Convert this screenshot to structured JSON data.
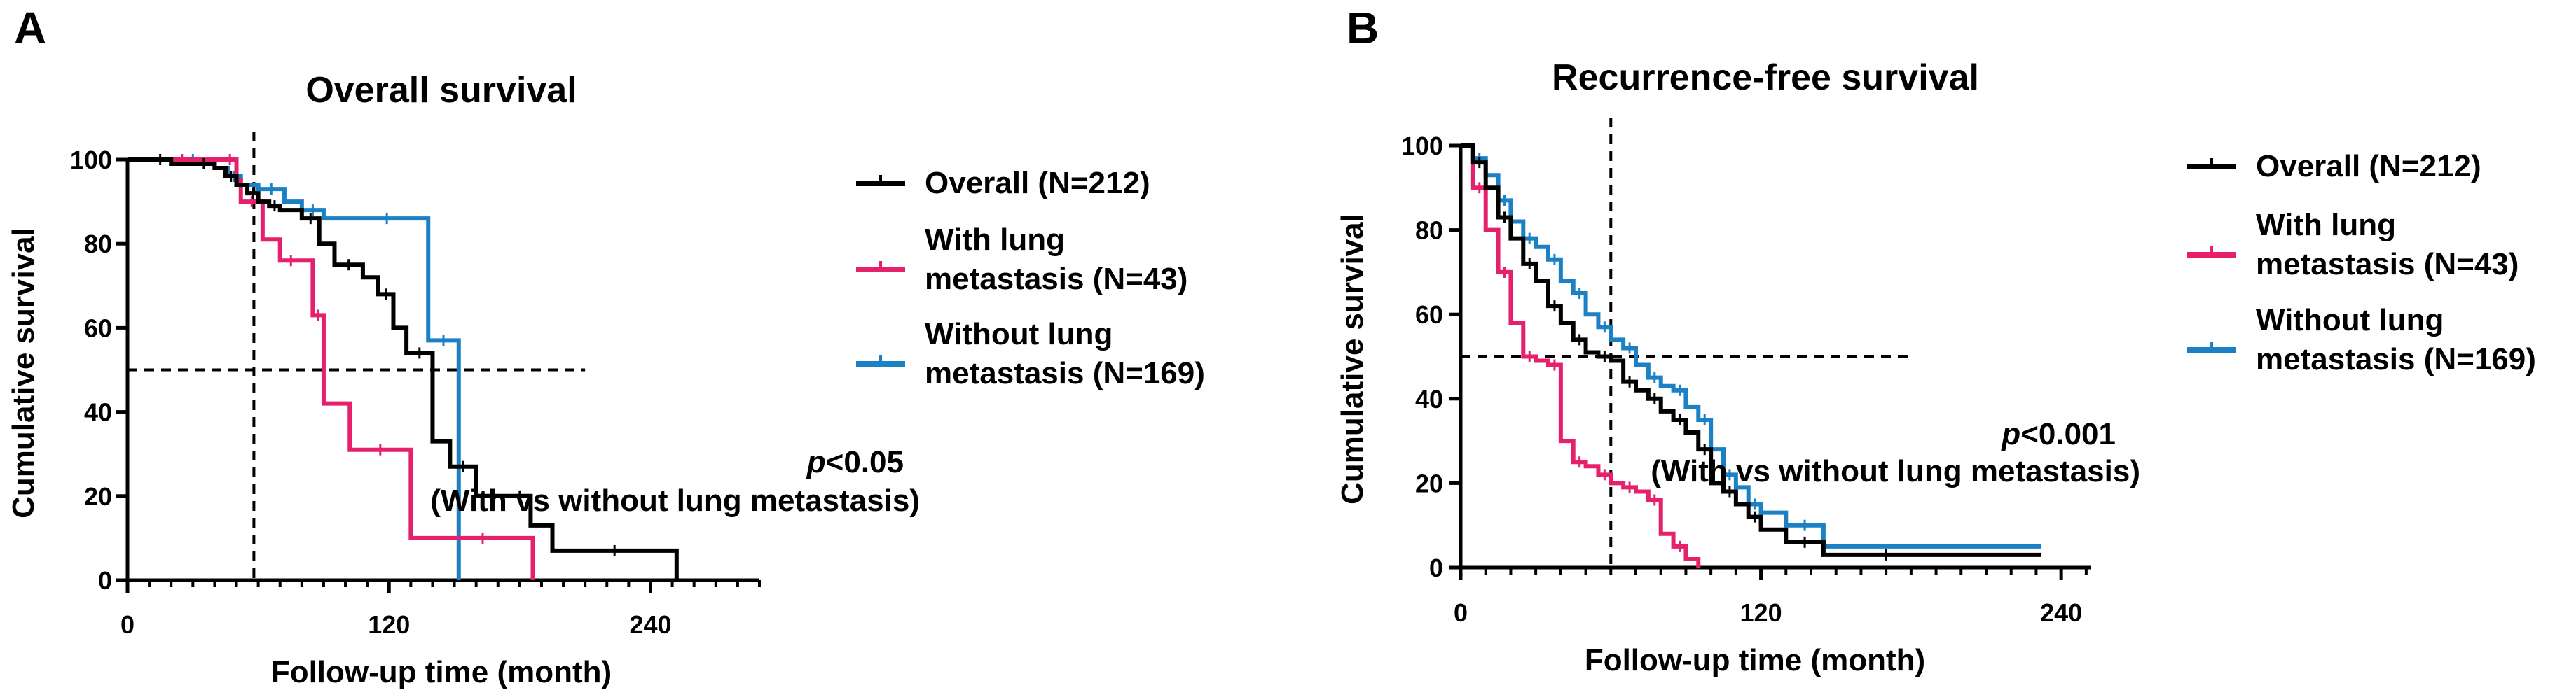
{
  "colors": {
    "overall": "#000000",
    "with": "#e5216e",
    "without": "#1b80c4"
  },
  "chart_data": [
    {
      "type": "line",
      "panel": "A",
      "title": "Overall survival",
      "xlabel": "Follow-up time (month)",
      "ylabel": "Cumulative survival",
      "xlim": [
        0,
        290
      ],
      "ylim": [
        0,
        100
      ],
      "xticks": [
        0,
        120,
        240
      ],
      "yticks": [
        0,
        20,
        40,
        60,
        80,
        100
      ],
      "reference_lines": {
        "x": 58,
        "y": 50,
        "y_line_xmax": 210
      },
      "p_value": {
        "prefix": "p",
        "value": "<0.05",
        "comparison": "(With vs without lung metastasis)"
      },
      "series": [
        {
          "key": "overall",
          "legend": [
            "Overall (N=212)"
          ],
          "x": [
            0,
            10,
            20,
            30,
            40,
            45,
            50,
            55,
            60,
            65,
            70,
            80,
            88,
            95,
            108,
            115,
            122,
            128,
            140,
            148,
            160,
            175,
            185,
            195,
            252
          ],
          "y": [
            100,
            100,
            99,
            99,
            98,
            96,
            94,
            92,
            90,
            89,
            88,
            86,
            80,
            75,
            72,
            68,
            60,
            54,
            33,
            27,
            20,
            20,
            13,
            7,
            0
          ]
        },
        {
          "key": "with",
          "legend": [
            "With lung",
            "metastasis (N=43)"
          ],
          "x": [
            0,
            20,
            30,
            44,
            50,
            52,
            62,
            70,
            80,
            85,
            90,
            102,
            130,
            140,
            186
          ],
          "y": [
            100,
            100,
            100,
            100,
            95,
            90,
            81,
            76,
            76,
            63,
            42,
            31,
            10,
            10,
            0
          ]
        },
        {
          "key": "without",
          "legend": [
            "Without lung",
            "metastasis (N=169)"
          ],
          "x": [
            0,
            20,
            40,
            46,
            52,
            60,
            72,
            80,
            90,
            110,
            128,
            138,
            152
          ],
          "y": [
            100,
            100,
            98,
            96,
            94,
            93,
            90,
            88,
            86,
            86,
            86,
            57,
            0
          ]
        }
      ]
    },
    {
      "type": "line",
      "panel": "B",
      "title": "Recurrence-free survival",
      "xlabel": "Follow-up time (month)",
      "ylabel": "Cumulative survival",
      "xlim": [
        0,
        252
      ],
      "ylim": [
        0,
        100
      ],
      "xticks": [
        0,
        120,
        240
      ],
      "yticks": [
        0,
        20,
        40,
        60,
        80,
        100
      ],
      "reference_lines": {
        "x": 60,
        "y": 50,
        "y_line_xmax": 180
      },
      "p_value": {
        "prefix": "p",
        "value": "<0.001",
        "comparison": "(With vs without lung metastasis)"
      },
      "series": [
        {
          "key": "overall",
          "legend": [
            "Overall (N=212)"
          ],
          "x": [
            0,
            5,
            10,
            15,
            20,
            25,
            30,
            35,
            40,
            45,
            50,
            55,
            60,
            65,
            70,
            75,
            80,
            85,
            90,
            95,
            100,
            105,
            110,
            115,
            120,
            130,
            145,
            160,
            180,
            232
          ],
          "y": [
            100,
            96,
            90,
            83,
            78,
            72,
            68,
            62,
            58,
            54,
            51,
            50,
            49,
            44,
            42,
            40,
            37,
            35,
            32,
            28,
            20,
            18,
            15,
            12,
            9,
            6,
            3,
            3,
            3,
            3
          ]
        },
        {
          "key": "with",
          "legend": [
            "With lung",
            "metastasis (N=43)"
          ],
          "x": [
            0,
            5,
            10,
            15,
            20,
            25,
            30,
            35,
            40,
            45,
            50,
            55,
            60,
            65,
            70,
            75,
            80,
            85,
            90,
            95
          ],
          "y": [
            100,
            90,
            80,
            70,
            58,
            50,
            49,
            48,
            30,
            25,
            24,
            22,
            20,
            19,
            18,
            16,
            8,
            5,
            2,
            0
          ]
        },
        {
          "key": "without",
          "legend": [
            "Without lung",
            "metastasis (N=169)"
          ],
          "x": [
            0,
            5,
            10,
            15,
            20,
            25,
            30,
            35,
            40,
            45,
            50,
            55,
            60,
            65,
            70,
            75,
            80,
            85,
            90,
            95,
            100,
            105,
            110,
            115,
            120,
            130,
            145,
            232
          ],
          "y": [
            100,
            97,
            93,
            87,
            82,
            78,
            76,
            73,
            68,
            65,
            60,
            57,
            54,
            52,
            48,
            45,
            43,
            42,
            38,
            35,
            28,
            22,
            19,
            15,
            13,
            10,
            5,
            5
          ]
        }
      ]
    }
  ]
}
